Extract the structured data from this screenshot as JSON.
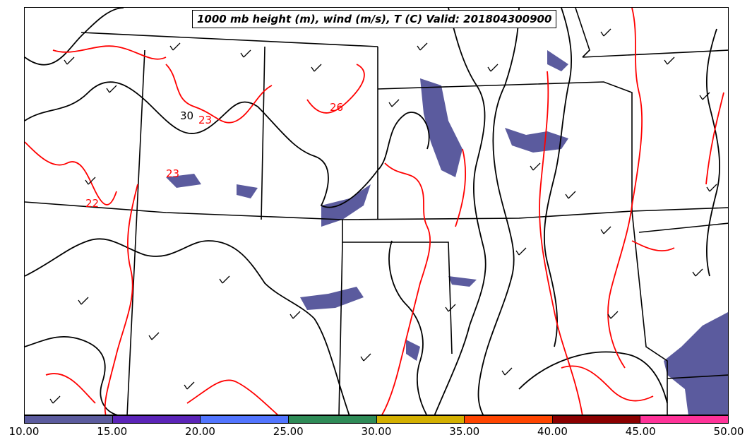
{
  "title": "1000 mb height (m), wind (m/s), T (C) Valid: 201804300900",
  "contour_labels": {
    "height": [
      "30"
    ],
    "temperature": [
      "23",
      "26",
      "23",
      "22"
    ]
  },
  "colorbar": {
    "ticks": [
      "10.00",
      "15.00",
      "20.00",
      "25.00",
      "30.00",
      "35.00",
      "40.00",
      "45.00",
      "50.00"
    ],
    "colors": [
      "#5b5b9e",
      "#5b24b8",
      "#5275ff",
      "#2e8b57",
      "#d4b000",
      "#ff4500",
      "#8b0000",
      "#ff3399"
    ]
  },
  "colors": {
    "height_contour": "#000000",
    "temperature_contour": "#ff0000",
    "wind_fill": "#5b5b9e",
    "state_border": "#000000"
  }
}
